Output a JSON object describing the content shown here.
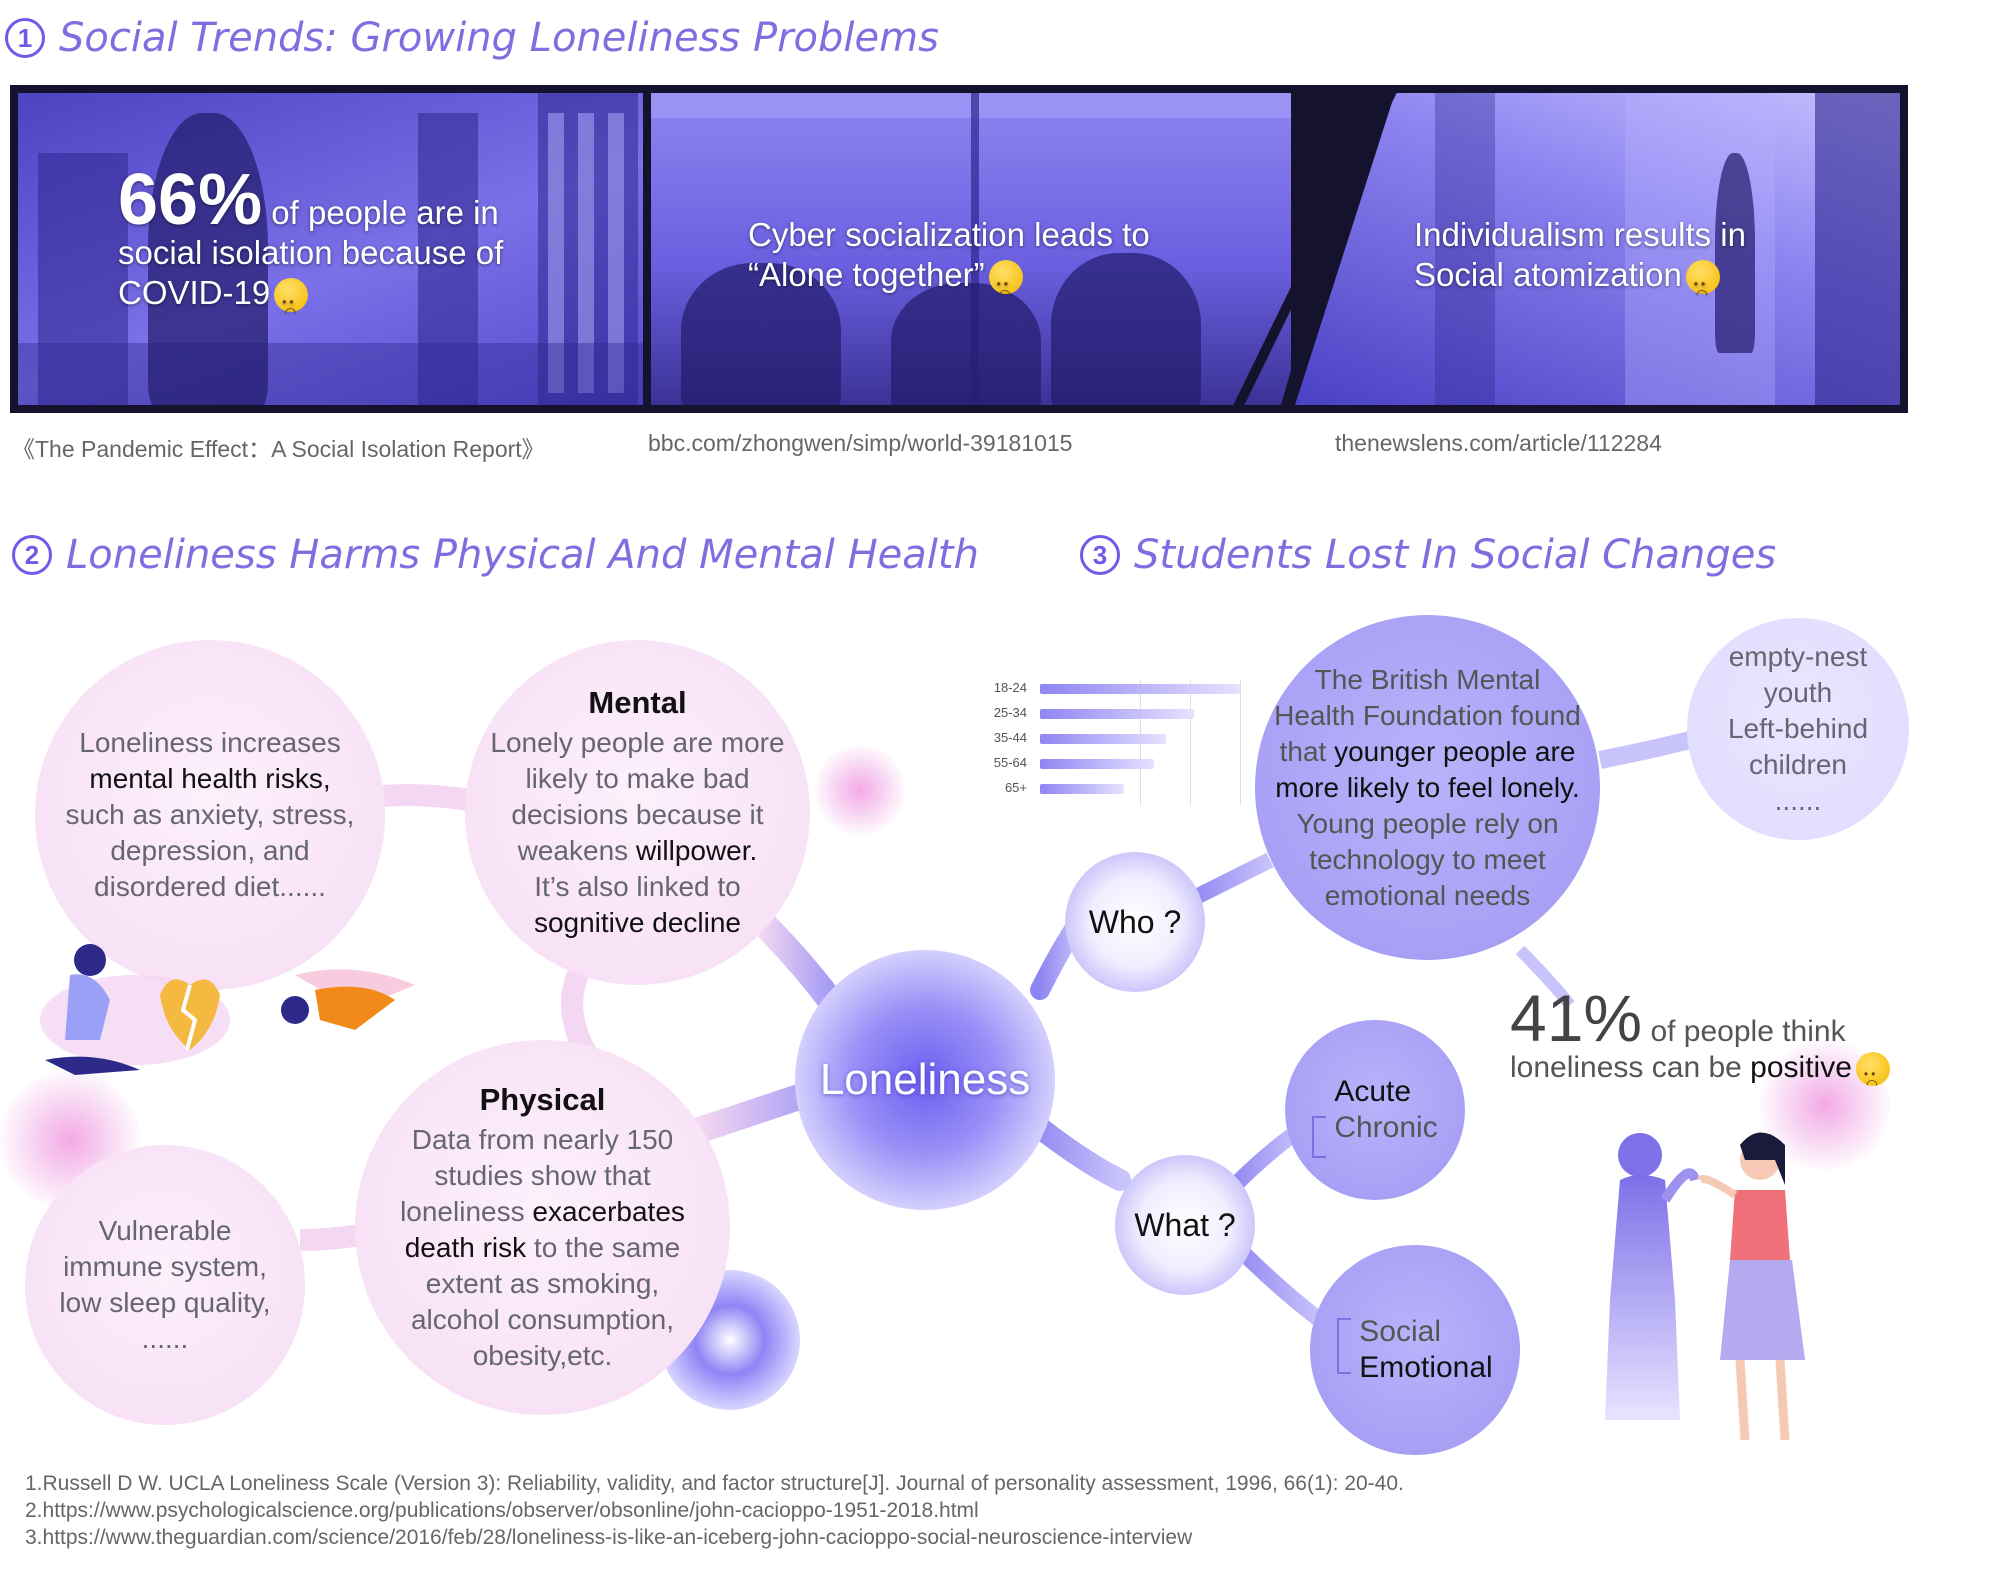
{
  "sections": [
    {
      "num": "1",
      "title": "Social Trends: Growing Loneliness Problems"
    },
    {
      "num": "2",
      "title": "Loneliness Harms Physical And Mental Health"
    },
    {
      "num": "3",
      "title": "Students Lost In Social Changes"
    }
  ],
  "banner": {
    "panel1": {
      "pct": "66%",
      "rest1": " of people are in",
      "rest2": "social isolation because of",
      "rest3": "COVID-19"
    },
    "panel2": {
      "line1": "Cyber socialization leads to",
      "line2": "“Alone together”"
    },
    "panel3": {
      "line1": "Individualism results in",
      "line2": "Social atomization"
    }
  },
  "sources": [
    "《The Pandemic Effect：A Social Isolation Report》",
    "bbc.com/zhongwen/simp/world-39181015",
    "thenewslens.com/article/112284"
  ],
  "health": {
    "mental_risk": {
      "p1": "Loneliness increases",
      "p2": "mental health risks,",
      "p3": "such as anxiety, stress,",
      "p4": "depression, and",
      "p5": "disordered diet......"
    },
    "mental": {
      "title": "Mental",
      "p1": "Lonely people are more",
      "p2": "likely to make bad",
      "p3": "decisions because it",
      "p4a": "weakens ",
      "p4b": "willpower.",
      "p5": "It’s also linked to",
      "p6": "sognitive decline"
    },
    "physical": {
      "title": "Physical",
      "p1": "Data from nearly 150",
      "p2": "studies show that",
      "p3a": "loneliness ",
      "p3b": "exacerbates",
      "p4a": "death risk",
      "p4b": " to the same",
      "p5": "extent as smoking,",
      "p6": "alcohol consumption,",
      "p7": "obesity,etc."
    },
    "immune": {
      "p1": "Vulnerable",
      "p2": "immune system,",
      "p3": "low sleep quality,",
      "p4": "......"
    }
  },
  "center": "Loneliness",
  "who": {
    "label": "Who ?"
  },
  "what": {
    "label": "What ?"
  },
  "british": {
    "p1": "The British Mental",
    "p2": "Health Foundation found",
    "p3a": "that ",
    "p3b": "younger people are",
    "p4": "more likely to feel lonely.",
    "p5": "Young people rely on",
    "p6": "technology to meet",
    "p7": "emotional needs"
  },
  "groups": {
    "p1": "empty-nest",
    "p2": "youth",
    "p3": "Left-behind",
    "p4": "children",
    "p5": "......"
  },
  "types_a": {
    "t1": "Acute",
    "t2": "Chronic"
  },
  "types_b": {
    "t1": "Social",
    "t2": "Emotional"
  },
  "stat": {
    "pct": "41%",
    "l1": " of people think",
    "l2a": "loneliness can be ",
    "l2b": "positive"
  },
  "chart_data": {
    "type": "bar",
    "orientation": "horizontal",
    "categories": [
      "18-24",
      "25-34",
      "35-44",
      "55-64",
      "65+"
    ],
    "values": [
      100,
      77,
      63,
      57,
      42
    ],
    "xlim": [
      0,
      100
    ]
  },
  "references": [
    "1.Russell D W. UCLA Loneliness Scale (Version 3): Reliability, validity, and factor structure[J]. Journal of personality assessment, 1996, 66(1): 20-40.",
    "2.https://www.psychologicalscience.org/publications/observer/obsonline/john-cacioppo-1951-2018.html",
    "3.https://www.theguardian.com/science/2016/feb/28/loneliness-is-like-an-iceberg-john-cacioppo-social-neuroscience-interview"
  ]
}
